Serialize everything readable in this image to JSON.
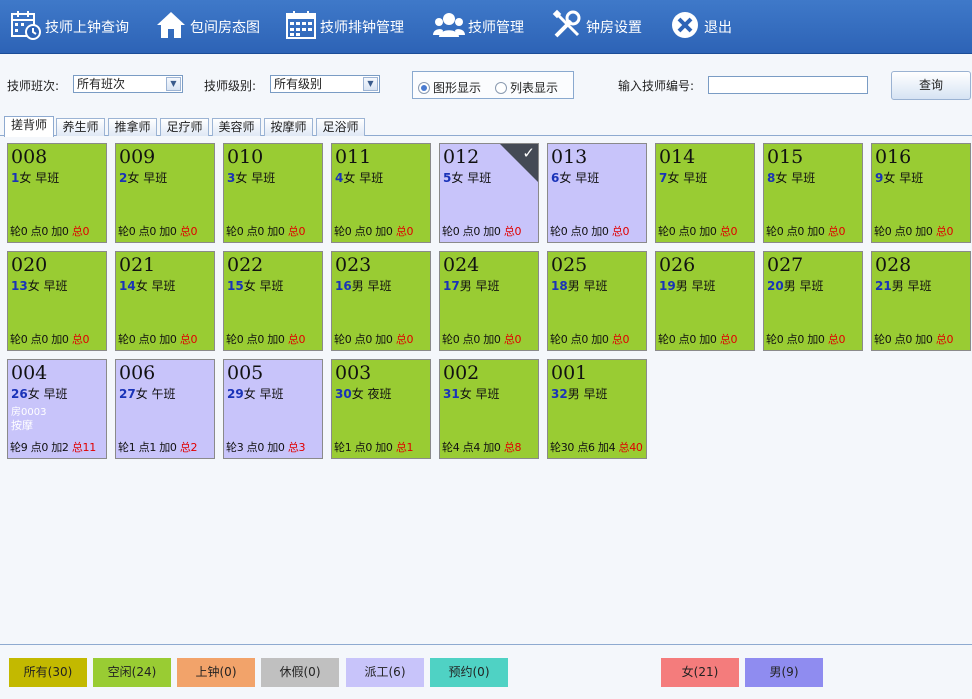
{
  "toolbar": {
    "items": [
      {
        "label": "技师上钟查询",
        "icon": "calendar-clock-icon"
      },
      {
        "label": "包间房态图",
        "icon": "house-icon"
      },
      {
        "label": "技师排钟管理",
        "icon": "calendar-grid-icon"
      },
      {
        "label": "技师管理",
        "icon": "people-icon"
      },
      {
        "label": "钟房设置",
        "icon": "tools-icon"
      },
      {
        "label": "退出",
        "icon": "close-circle-icon"
      }
    ]
  },
  "filters": {
    "shift_label": "技师班次:",
    "shift_value": "所有班次",
    "level_label": "技师级别:",
    "level_value": "所有级别",
    "view_graphic": "图形显示",
    "view_list": "列表显示",
    "view_selected": "graphic",
    "tech_no_label": "输入技师编号:",
    "tech_no_value": "",
    "query_button": "查询"
  },
  "tabs": [
    {
      "label": "搓背师",
      "active": true
    },
    {
      "label": "养生师",
      "active": false
    },
    {
      "label": "推拿师",
      "active": false
    },
    {
      "label": "足疗师",
      "active": false
    },
    {
      "label": "美容师",
      "active": false
    },
    {
      "label": "按摩师",
      "active": false
    },
    {
      "label": "足浴师",
      "active": false
    }
  ],
  "colors": {
    "idle": "#99cc33",
    "dispatched": "#c8c4fa",
    "total": "#e00000",
    "sequence": "#1a33b8"
  },
  "cards": [
    {
      "code": "008",
      "seq": "1",
      "gender": "女",
      "shift": "早班",
      "state": "idle",
      "lun": "0",
      "dian": "0",
      "jia": "0",
      "zong": "0"
    },
    {
      "code": "009",
      "seq": "2",
      "gender": "女",
      "shift": "早班",
      "state": "idle",
      "lun": "0",
      "dian": "0",
      "jia": "0",
      "zong": "0"
    },
    {
      "code": "010",
      "seq": "3",
      "gender": "女",
      "shift": "早班",
      "state": "idle",
      "lun": "0",
      "dian": "0",
      "jia": "0",
      "zong": "0"
    },
    {
      "code": "011",
      "seq": "4",
      "gender": "女",
      "shift": "早班",
      "state": "idle",
      "lun": "0",
      "dian": "0",
      "jia": "0",
      "zong": "0"
    },
    {
      "code": "012",
      "seq": "5",
      "gender": "女",
      "shift": "早班",
      "state": "dispatched",
      "selected": true,
      "lun": "0",
      "dian": "0",
      "jia": "0",
      "zong": "0"
    },
    {
      "code": "013",
      "seq": "6",
      "gender": "女",
      "shift": "早班",
      "state": "dispatched",
      "lun": "0",
      "dian": "0",
      "jia": "0",
      "zong": "0"
    },
    {
      "code": "014",
      "seq": "7",
      "gender": "女",
      "shift": "早班",
      "state": "idle",
      "lun": "0",
      "dian": "0",
      "jia": "0",
      "zong": "0"
    },
    {
      "code": "015",
      "seq": "8",
      "gender": "女",
      "shift": "早班",
      "state": "idle",
      "lun": "0",
      "dian": "0",
      "jia": "0",
      "zong": "0"
    },
    {
      "code": "016",
      "seq": "9",
      "gender": "女",
      "shift": "早班",
      "state": "idle",
      "lun": "0",
      "dian": "0",
      "jia": "0",
      "zong": "0"
    },
    {
      "code": "020",
      "seq": "13",
      "gender": "女",
      "shift": "早班",
      "state": "idle",
      "lun": "0",
      "dian": "0",
      "jia": "0",
      "zong": "0"
    },
    {
      "code": "021",
      "seq": "14",
      "gender": "女",
      "shift": "早班",
      "state": "idle",
      "lun": "0",
      "dian": "0",
      "jia": "0",
      "zong": "0"
    },
    {
      "code": "022",
      "seq": "15",
      "gender": "女",
      "shift": "早班",
      "state": "idle",
      "lun": "0",
      "dian": "0",
      "jia": "0",
      "zong": "0"
    },
    {
      "code": "023",
      "seq": "16",
      "gender": "男",
      "shift": "早班",
      "state": "idle",
      "lun": "0",
      "dian": "0",
      "jia": "0",
      "zong": "0"
    },
    {
      "code": "024",
      "seq": "17",
      "gender": "男",
      "shift": "早班",
      "state": "idle",
      "lun": "0",
      "dian": "0",
      "jia": "0",
      "zong": "0"
    },
    {
      "code": "025",
      "seq": "18",
      "gender": "男",
      "shift": "早班",
      "state": "idle",
      "lun": "0",
      "dian": "0",
      "jia": "0",
      "zong": "0"
    },
    {
      "code": "026",
      "seq": "19",
      "gender": "男",
      "shift": "早班",
      "state": "idle",
      "lun": "0",
      "dian": "0",
      "jia": "0",
      "zong": "0"
    },
    {
      "code": "027",
      "seq": "20",
      "gender": "男",
      "shift": "早班",
      "state": "idle",
      "lun": "0",
      "dian": "0",
      "jia": "0",
      "zong": "0"
    },
    {
      "code": "028",
      "seq": "21",
      "gender": "男",
      "shift": "早班",
      "state": "idle",
      "lun": "0",
      "dian": "0",
      "jia": "0",
      "zong": "0"
    },
    {
      "code": "004",
      "seq": "26",
      "gender": "女",
      "shift": "早班",
      "state": "dispatched",
      "room": "房0003",
      "service": "按摩",
      "lun": "9",
      "dian": "0",
      "jia": "2",
      "zong": "11"
    },
    {
      "code": "006",
      "seq": "27",
      "gender": "女",
      "shift": "午班",
      "state": "dispatched",
      "lun": "1",
      "dian": "1",
      "jia": "0",
      "zong": "2"
    },
    {
      "code": "005",
      "seq": "29",
      "gender": "女",
      "shift": "早班",
      "state": "dispatched",
      "lun": "3",
      "dian": "0",
      "jia": "0",
      "zong": "3"
    },
    {
      "code": "003",
      "seq": "30",
      "gender": "女",
      "shift": "夜班",
      "state": "idle",
      "lun": "1",
      "dian": "0",
      "jia": "0",
      "zong": "1"
    },
    {
      "code": "002",
      "seq": "31",
      "gender": "女",
      "shift": "早班",
      "state": "idle",
      "lun": "4",
      "dian": "4",
      "jia": "0",
      "zong": "8"
    },
    {
      "code": "001",
      "seq": "32",
      "gender": "男",
      "shift": "早班",
      "state": "idle",
      "lun": "30",
      "dian": "6",
      "jia": "4",
      "zong": "40"
    }
  ],
  "stat_labels": {
    "lun": "轮",
    "dian": "点",
    "jia": "加",
    "zong": "总"
  },
  "legend": [
    {
      "label": "所有(30)",
      "color": "#c3b900"
    },
    {
      "label": "空闲(24)",
      "color": "#99cc33"
    },
    {
      "label": "上钟(0)",
      "color": "#f2a36a"
    },
    {
      "label": "休假(0)",
      "color": "#c0c0c0"
    },
    {
      "label": "派工(6)",
      "color": "#c8c4fa"
    },
    {
      "label": "预约(0)",
      "color": "#4fd2c4"
    },
    {
      "label": "女(21)",
      "color": "#f47c7c"
    },
    {
      "label": "男(9)",
      "color": "#8f8cf0"
    }
  ]
}
